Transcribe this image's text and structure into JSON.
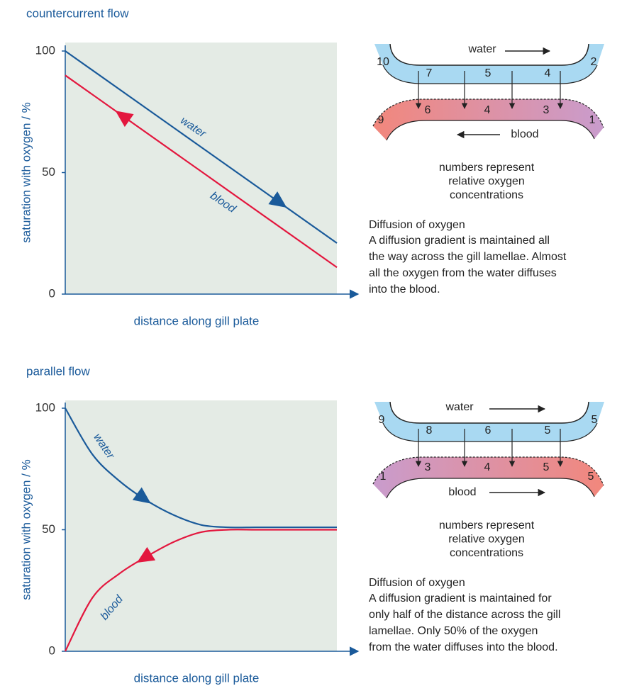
{
  "chart_data": [
    {
      "type": "line",
      "title": "countercurrent flow",
      "x_label": "distance along gill plate",
      "y_label": "saturation with oxygen / %",
      "x": [
        0,
        1
      ],
      "xlim": [
        0,
        1
      ],
      "ylim": [
        0,
        100
      ],
      "yticks": [
        0,
        50,
        100
      ],
      "series": [
        {
          "name": "water",
          "color": "#1a5a9a",
          "values": [
            100,
            21
          ]
        },
        {
          "name": "blood",
          "color": "#e3173e",
          "values": [
            90,
            11
          ]
        }
      ]
    },
    {
      "type": "line",
      "title": "parallel flow",
      "x_label": "distance along gill plate",
      "y_label": "saturation with oxygen / %",
      "x": [
        0,
        0.1,
        0.2,
        0.3,
        0.4,
        0.5,
        0.6,
        0.7,
        0.8,
        0.9,
        1
      ],
      "xlim": [
        0,
        1
      ],
      "ylim": [
        0,
        100
      ],
      "yticks": [
        0,
        50,
        100
      ],
      "series": [
        {
          "name": "water",
          "color": "#1a5a9a",
          "values": [
            100,
            81,
            70,
            62,
            56,
            52,
            51,
            51,
            51,
            51,
            51
          ]
        },
        {
          "name": "blood",
          "color": "#e3173e",
          "values": [
            0,
            22,
            32,
            39,
            45,
            49,
            50,
            50,
            50,
            50,
            50
          ]
        }
      ]
    }
  ],
  "diagrams": [
    {
      "water_label": "water",
      "blood_label": "blood",
      "water_numbers": [
        10,
        7,
        5,
        4,
        2
      ],
      "blood_numbers": [
        9,
        6,
        4,
        3,
        1
      ],
      "caption": [
        "numbers represent",
        "relative oxygen",
        "concentrations"
      ],
      "heading": "Diffusion of oxygen",
      "text": [
        "A diffusion gradient is maintained all",
        "the way across the gill lamellae. Almost",
        "all the oxygen from the water diffuses",
        "into the blood."
      ]
    },
    {
      "water_label": "water",
      "blood_label": "blood",
      "water_numbers": [
        9,
        8,
        6,
        5,
        5
      ],
      "blood_numbers": [
        1,
        3,
        4,
        5,
        5
      ],
      "caption": [
        "numbers represent",
        "relative oxygen",
        "concentrations"
      ],
      "heading": "Diffusion of oxygen",
      "text": [
        "A diffusion gradient is maintained  for",
        "only half of the distance across the gill",
        "lamellae. Only 50% of the oxygen",
        "from the water diffuses into the blood."
      ]
    }
  ]
}
